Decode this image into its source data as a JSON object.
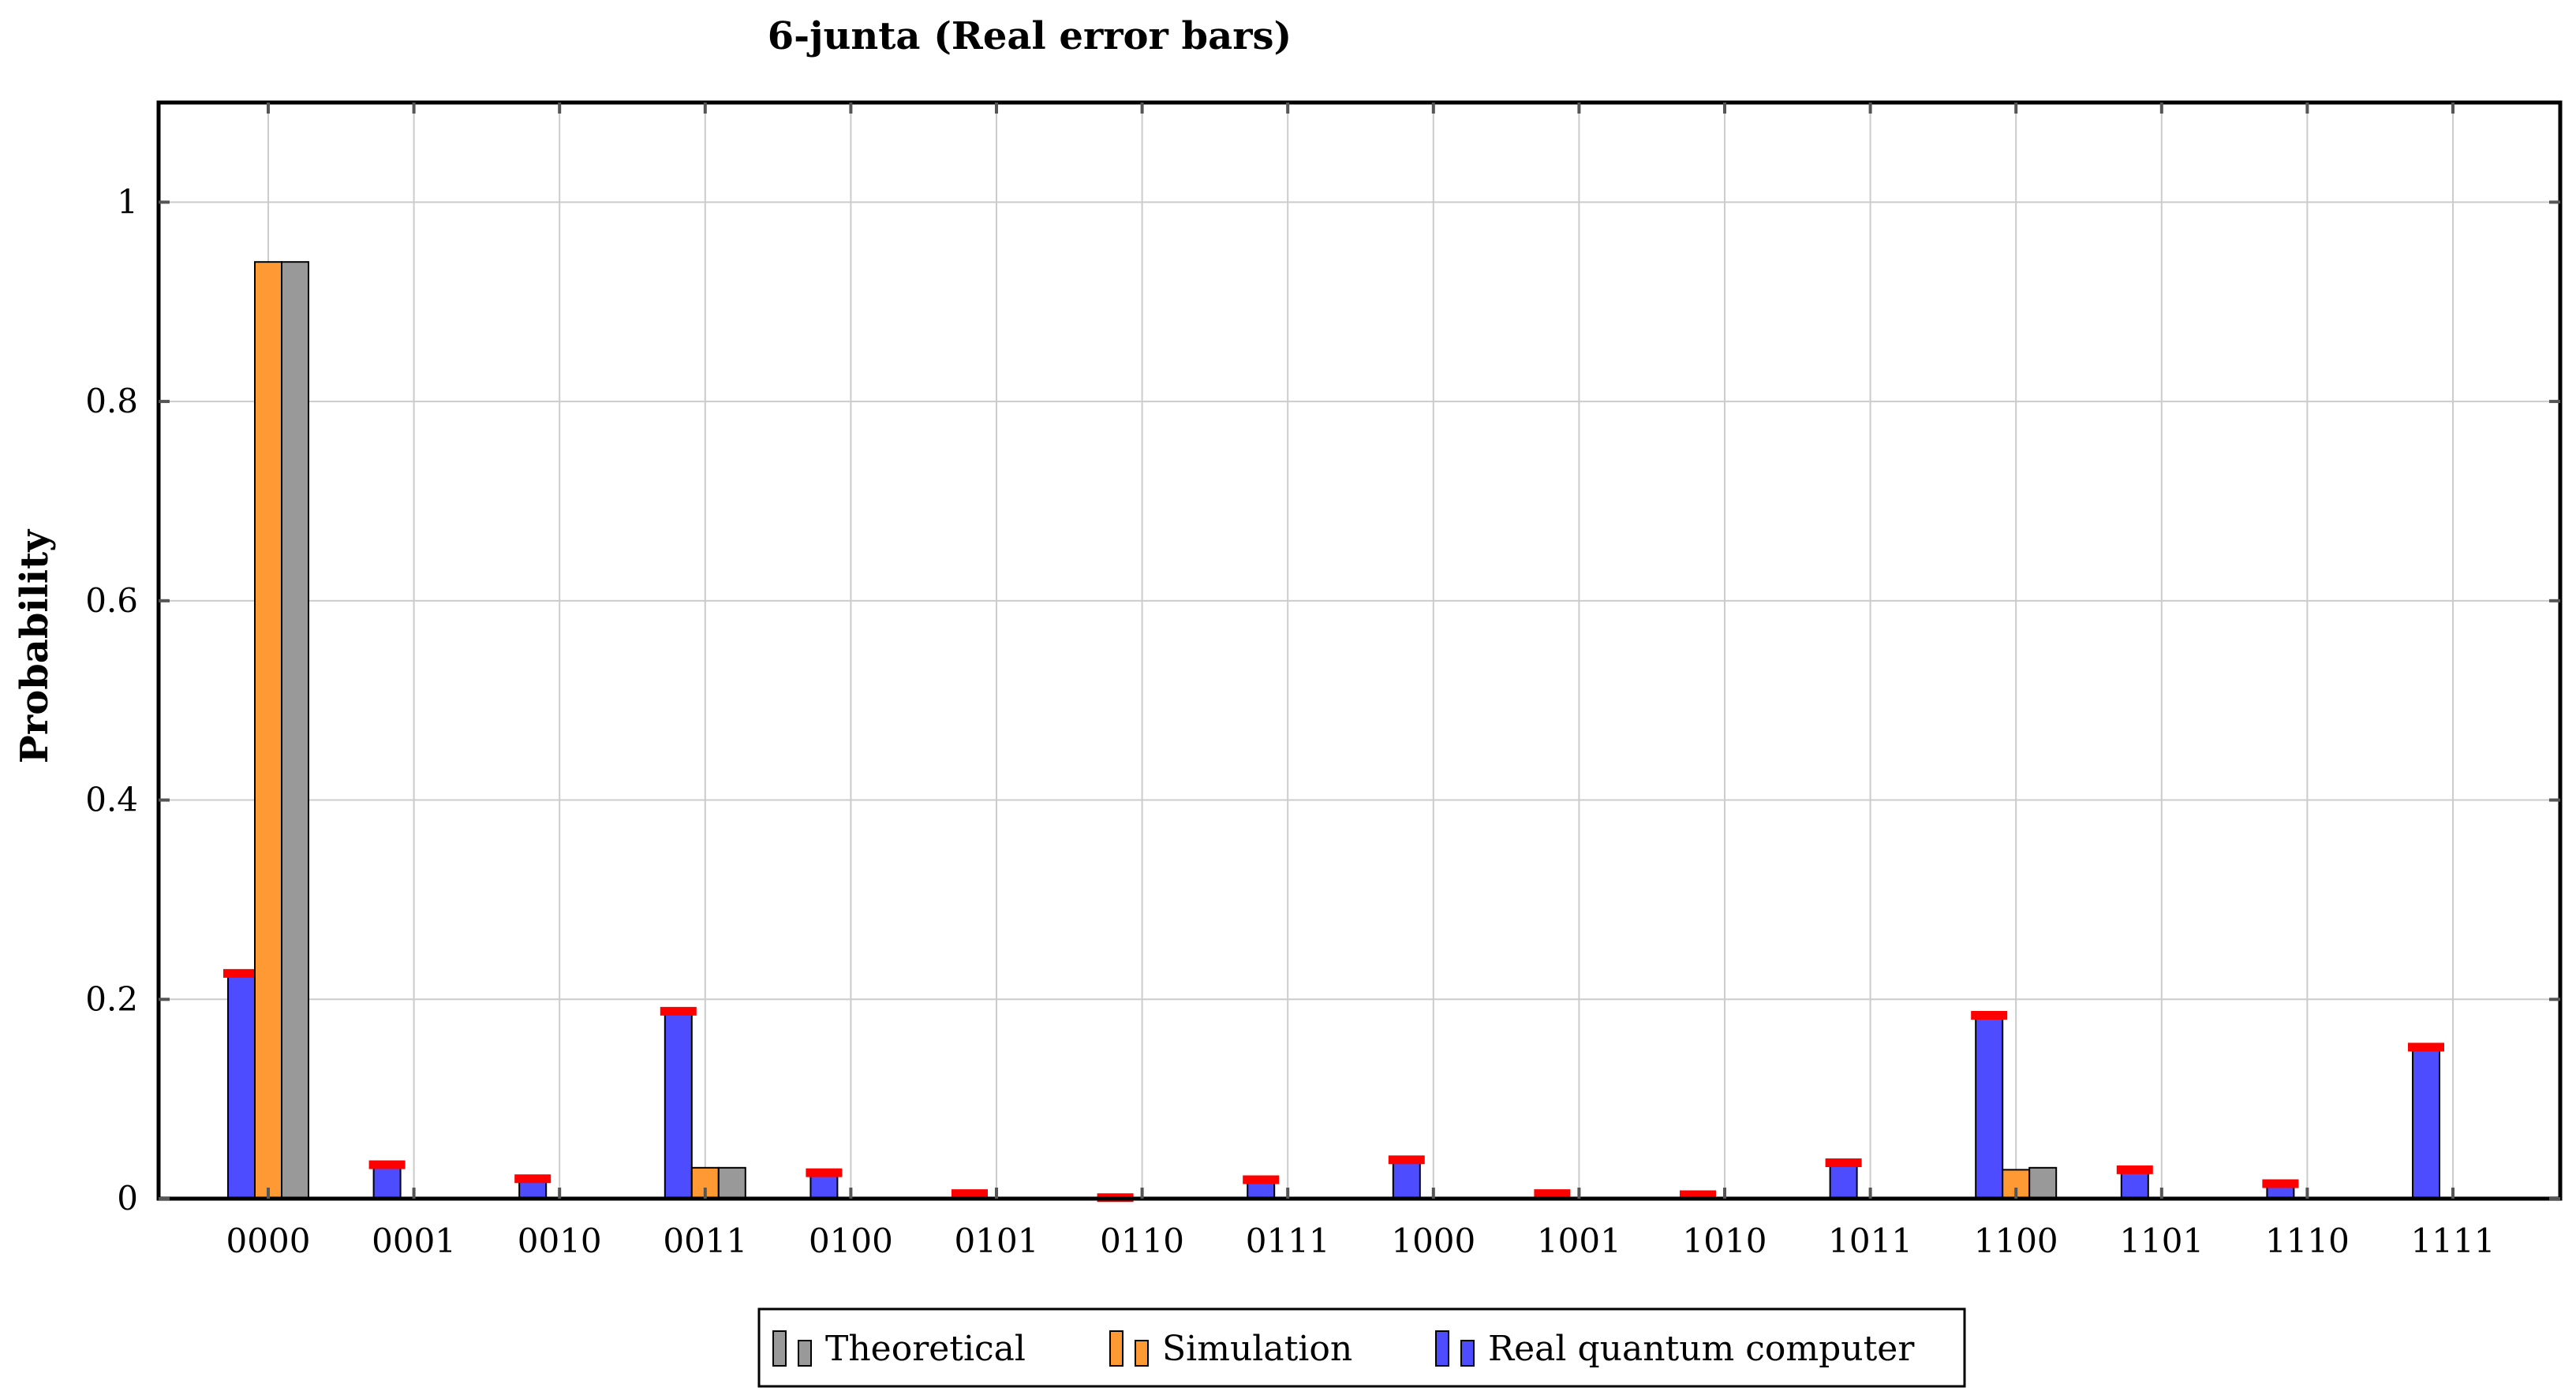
{
  "chart_data": {
    "type": "bar",
    "title": "6-junta (Real error bars)",
    "xlabel": "",
    "ylabel": "Probability",
    "ylim": [
      0,
      1.1
    ],
    "yticks": [
      0,
      0.2,
      0.4,
      0.6,
      0.8,
      1
    ],
    "ytick_labels": [
      "0",
      "0.2",
      "0.4",
      "0.6",
      "0.8",
      "1"
    ],
    "grid": true,
    "legend_position": "bottom-center",
    "categories": [
      "0000",
      "0001",
      "0010",
      "0011",
      "0100",
      "0101",
      "0110",
      "0111",
      "1000",
      "1001",
      "1010",
      "1011",
      "1100",
      "1101",
      "1110",
      "1111"
    ],
    "series": [
      {
        "name": "Real quantum computer",
        "color": "#4d4dff",
        "values": [
          0.226,
          0.034,
          0.02,
          0.188,
          0.026,
          0.005,
          0.001,
          0.019,
          0.039,
          0.005,
          0.004,
          0.036,
          0.184,
          0.029,
          0.015,
          0.152
        ],
        "error_color": "#ff0000"
      },
      {
        "name": "Simulation",
        "color": "#ff9933",
        "values": [
          0.94,
          0,
          0,
          0.031,
          0,
          0,
          0,
          0,
          0,
          0,
          0,
          0,
          0.029,
          0,
          0,
          0
        ]
      },
      {
        "name": "Theoretical",
        "color": "#999999",
        "values": [
          0.94,
          0,
          0,
          0.031,
          0,
          0,
          0,
          0,
          0,
          0,
          0,
          0,
          0.031,
          0,
          0,
          0
        ]
      }
    ],
    "legend_order": [
      "Theoretical",
      "Simulation",
      "Real quantum computer"
    ]
  }
}
